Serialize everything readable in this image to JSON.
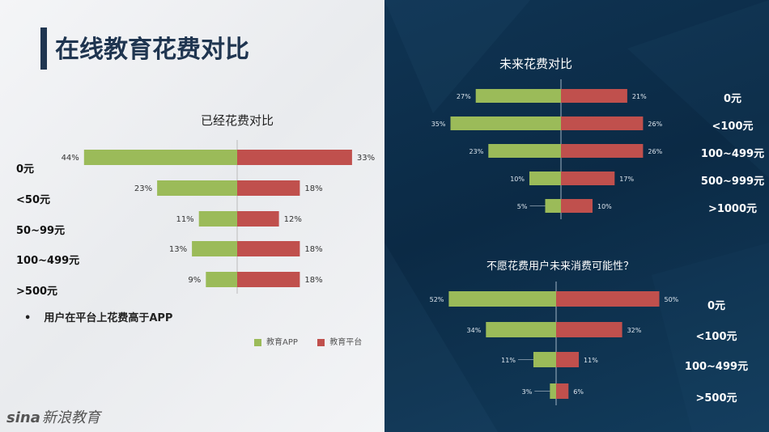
{
  "page_title": "在线教育花费对比",
  "bullet_text": "用户在平台上花费高于APP",
  "watermark": {
    "brand": "sina",
    "text": "新浪教育"
  },
  "legend": {
    "app": "教育APP",
    "platform": "教育平台"
  },
  "colors": {
    "app": "#9bbb59",
    "platform": "#c0504d",
    "accent": "#1f3550",
    "right_bg": "#0b2a45"
  },
  "chart_data": [
    {
      "type": "bar",
      "title": "已经花费对比",
      "categories": [
        "0元",
        "<50元",
        "50~99元",
        "100~499元",
        ">500元"
      ],
      "series": [
        {
          "name": "教育APP",
          "values": [
            44,
            23,
            11,
            13,
            9
          ],
          "labels": [
            "44%",
            "23%",
            "11%",
            "13%",
            "9%"
          ]
        },
        {
          "name": "教育平台",
          "values": [
            33,
            18,
            12,
            18,
            18
          ],
          "labels": [
            "33%",
            "18%",
            "12%",
            "18%",
            "18%"
          ]
        }
      ]
    },
    {
      "type": "bar",
      "title": "未来花费对比",
      "categories": [
        "0元",
        "<100元",
        "100~499元",
        "500~999元",
        ">1000元"
      ],
      "series": [
        {
          "name": "教育APP",
          "values": [
            27,
            35,
            23,
            10,
            5
          ],
          "labels": [
            "27%",
            "35%",
            "23%",
            "10%",
            "5%"
          ]
        },
        {
          "name": "教育平台",
          "values": [
            21,
            26,
            26,
            17,
            10
          ],
          "labels": [
            "21%",
            "26%",
            "26%",
            "17%",
            "10%"
          ]
        }
      ]
    },
    {
      "type": "bar",
      "title": "不愿花费用户未来消费可能性？",
      "categories": [
        "0元",
        "<100元",
        "100~499元",
        ">500元"
      ],
      "series": [
        {
          "name": "教育APP",
          "values": [
            52,
            34,
            11,
            3
          ],
          "labels": [
            "52%",
            "34%",
            "11%",
            "3%"
          ]
        },
        {
          "name": "教育平台",
          "values": [
            50,
            32,
            11,
            6
          ],
          "labels": [
            "50%",
            "32%",
            "11%",
            "6%"
          ]
        }
      ]
    }
  ]
}
